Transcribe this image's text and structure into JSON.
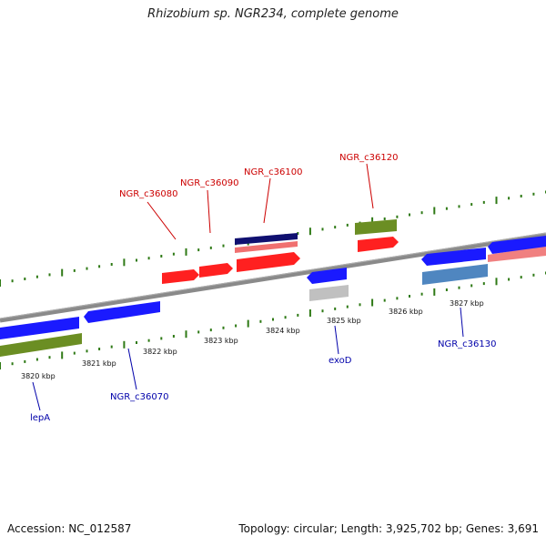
{
  "title": "Rhizobium sp. NGR234, complete genome",
  "footer": {
    "accession": "Accession: NC_012587",
    "topology": "Topology: circular; Length: 3,925,702 bp; Genes: 3,691"
  },
  "colors": {
    "forward_gene": "#ff2020",
    "reverse_gene": "#1a1aff",
    "label_forward": "#cc0000",
    "label_reverse": "#0000aa",
    "tick": "#2f7a16",
    "backbone": "#8a8a8a",
    "olive": "#6b8e23",
    "navy": "#101070",
    "salmon": "#f07070",
    "steel": "#4f86c0",
    "pink": "#f08080",
    "grey": "#c0c0c0"
  },
  "kbp_labels": [
    "3820 kbp",
    "3821 kbp",
    "3822 kbp",
    "3823 kbp",
    "3824 kbp",
    "3825 kbp",
    "3826 kbp",
    "3827 kbp"
  ],
  "gene_labels": {
    "forward": [
      "NGR_c36080",
      "NGR_c36090",
      "NGR_c36100",
      "NGR_c36120"
    ],
    "reverse": [
      "lepA",
      "NGR_c36070",
      "exoD",
      "NGR_c36130"
    ]
  }
}
